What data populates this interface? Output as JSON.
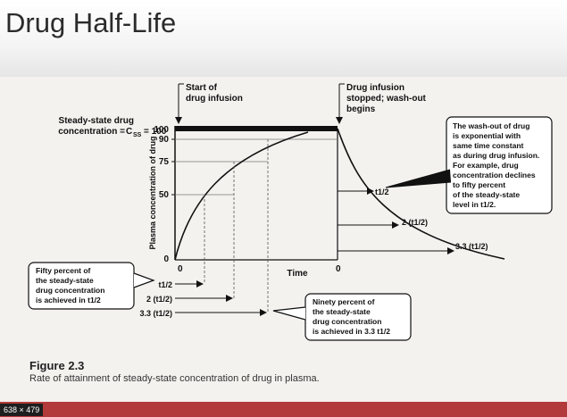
{
  "slide": {
    "title": "Drug Half-Life"
  },
  "figure": {
    "label": "Figure 2.3",
    "caption": "Rate of attainment of steady-state concentration of drug in plasma.",
    "y_axis_label": "Plasma concentration of drug",
    "x_axis_label": "Time",
    "y_ticks": [
      "100",
      "90",
      "75",
      "50",
      "0"
    ],
    "x_ticks": [
      "0",
      "0"
    ],
    "css_label_line1": "Steady-state drug",
    "css_label_line2": "concentration = ",
    "css_symbol": "C",
    "css_subscript": "SS",
    "css_value": " = 100",
    "start_infusion_line1": "Start of",
    "start_infusion_line2": "drug infusion",
    "stop_infusion_line1": "Drug infusion",
    "stop_infusion_line2": "stopped; wash-out",
    "stop_infusion_line3": "begins",
    "washout_box": [
      "The wash-out of drug",
      "is exponential with",
      "same time constant",
      "as during drug infusion.",
      "For example, drug",
      "concentration declines",
      "to fifty percent",
      "of the steady-state",
      "level in t1/2."
    ],
    "fifty_box": [
      "Fifty percent of",
      "the steady-state",
      "drug concentration",
      "is achieved in t1/2"
    ],
    "ninety_box": [
      "Ninety percent of",
      "the steady-state",
      "drug concentration",
      "is achieved in 3.3 t1/2"
    ],
    "rise_marks": [
      "t1/2",
      "2 (t1/2)",
      "3.3 (t1/2)"
    ],
    "decay_marks": [
      "t1/2",
      "2 (t1/2)",
      "3.3 (t1/2)"
    ]
  },
  "window": {
    "size_badge": "638 × 479"
  }
}
